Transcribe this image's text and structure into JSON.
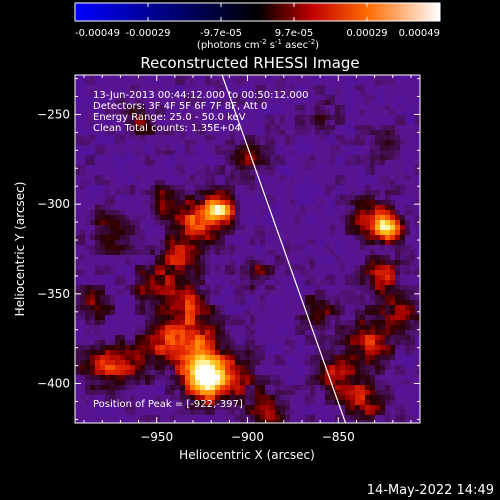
{
  "chart_data": {
    "type": "heatmap",
    "title": "Reconstructed RHESSI Image",
    "xlabel": "Heliocentric X (arcsec)",
    "ylabel": "Heliocentric Y (arcsec)",
    "xlim": [
      -995,
      -805
    ],
    "ylim": [
      -422,
      -228
    ],
    "xticks": [
      -950,
      -900,
      -850
    ],
    "yticks": [
      -400,
      -350,
      -300,
      -250
    ],
    "colorbar": {
      "ticks": [
        "-0.00049",
        "-0.00029",
        "-9.7e-05",
        "9.7e-05",
        "0.00029",
        "0.00049"
      ],
      "unit_parts": [
        "(photons cm",
        "-2",
        " s",
        "-1",
        " asec",
        "-2",
        ")"
      ],
      "range": [
        -0.00049,
        0.00049
      ]
    },
    "annotations": [
      "13-Jun-2013 00:44:12.000 to 00:50:12.000",
      "Detectors: 3F 4F 5F 6F 7F 8F, Att 0",
      "Energy Range: 25.0 - 50.0 keV",
      "Clean     Total counts: 1.35E+04"
    ],
    "peak_label": "Position of Peak = [-922,-397]",
    "peak": [
      -922,
      -397
    ],
    "limb_line": [
      [
        -914,
        -228
      ],
      [
        -846,
        -422
      ]
    ],
    "blobs": [
      {
        "x": -922,
        "y": -397,
        "v": 1.0,
        "s": 9
      },
      {
        "x": -930,
        "y": -378,
        "v": 0.55,
        "s": 10
      },
      {
        "x": -933,
        "y": -355,
        "v": 0.45,
        "s": 8
      },
      {
        "x": -937,
        "y": -330,
        "v": 0.42,
        "s": 8
      },
      {
        "x": -928,
        "y": -310,
        "v": 0.55,
        "s": 8
      },
      {
        "x": -916,
        "y": -303,
        "v": 0.85,
        "s": 6
      },
      {
        "x": -945,
        "y": -300,
        "v": 0.35,
        "s": 7
      },
      {
        "x": -952,
        "y": -345,
        "v": 0.35,
        "s": 8
      },
      {
        "x": -948,
        "y": -375,
        "v": 0.38,
        "s": 9
      },
      {
        "x": -965,
        "y": -390,
        "v": 0.32,
        "s": 8
      },
      {
        "x": -980,
        "y": -390,
        "v": 0.42,
        "s": 8
      },
      {
        "x": -985,
        "y": -355,
        "v": 0.3,
        "s": 7
      },
      {
        "x": -975,
        "y": -315,
        "v": 0.3,
        "s": 8
      },
      {
        "x": -900,
        "y": -275,
        "v": 0.3,
        "s": 7
      },
      {
        "x": -895,
        "y": -338,
        "v": 0.3,
        "s": 6
      },
      {
        "x": -905,
        "y": -395,
        "v": 0.3,
        "s": 8
      },
      {
        "x": -890,
        "y": -415,
        "v": 0.35,
        "s": 8
      },
      {
        "x": -960,
        "y": -255,
        "v": 0.25,
        "s": 7
      },
      {
        "x": -832,
        "y": -308,
        "v": 0.5,
        "s": 8
      },
      {
        "x": -822,
        "y": -313,
        "v": 0.8,
        "s": 5
      },
      {
        "x": -826,
        "y": -340,
        "v": 0.45,
        "s": 7
      },
      {
        "x": -832,
        "y": -375,
        "v": 0.45,
        "s": 9
      },
      {
        "x": -815,
        "y": -360,
        "v": 0.4,
        "s": 7
      },
      {
        "x": -850,
        "y": -395,
        "v": 0.4,
        "s": 9
      },
      {
        "x": -835,
        "y": -410,
        "v": 0.38,
        "s": 8
      },
      {
        "x": -860,
        "y": -360,
        "v": 0.3,
        "s": 7
      },
      {
        "x": -825,
        "y": -268,
        "v": 0.25,
        "s": 6
      },
      {
        "x": -860,
        "y": -250,
        "v": 0.2,
        "s": 6
      }
    ]
  },
  "footer": {
    "timestamp": "14-May-2022 14:49"
  }
}
